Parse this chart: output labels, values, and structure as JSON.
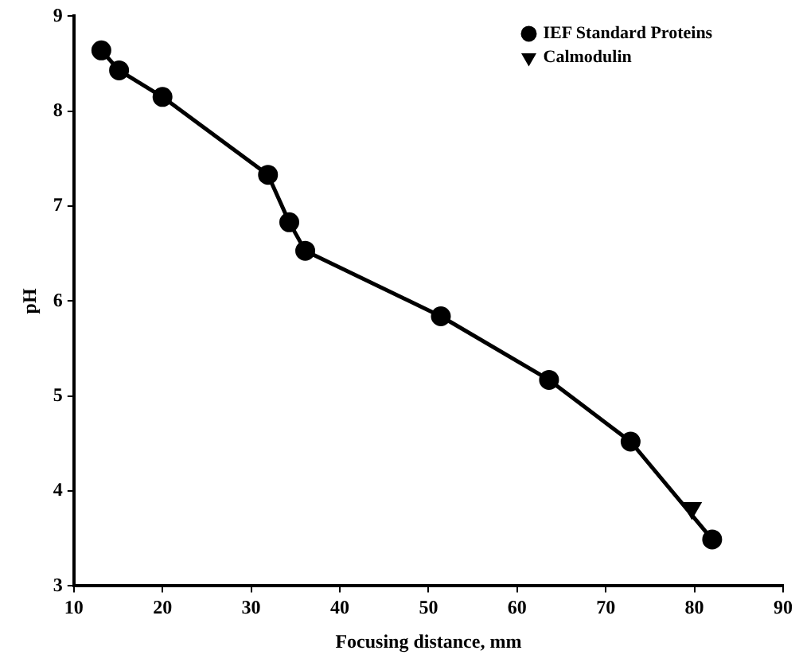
{
  "chart_data": {
    "type": "line",
    "xlabel": "Focusing distance, mm",
    "ylabel": "pH",
    "xlim": [
      10,
      90
    ],
    "xticks": [
      10,
      20,
      30,
      40,
      50,
      60,
      70,
      80,
      90
    ],
    "ylim": [
      3,
      9
    ],
    "yticks": [
      3,
      4,
      5,
      6,
      7,
      8,
      9
    ],
    "grid": false,
    "legend": "top right",
    "series": [
      {
        "name": "IEF Standard Proteins",
        "type": "line",
        "marker": "circle",
        "color": "#000000",
        "x": [
          13.1,
          15.1,
          20,
          31.9,
          34.3,
          36.1,
          51.4,
          63.6,
          72.8,
          82
        ],
        "values": [
          8.64,
          8.43,
          8.15,
          7.33,
          6.83,
          6.53,
          5.84,
          5.17,
          4.52,
          3.49
        ]
      },
      {
        "name": "Calmodulin",
        "type": "scatter",
        "marker": "triangle",
        "color": "#000000",
        "x": [
          79.7
        ],
        "values": [
          3.82
        ]
      }
    ]
  }
}
